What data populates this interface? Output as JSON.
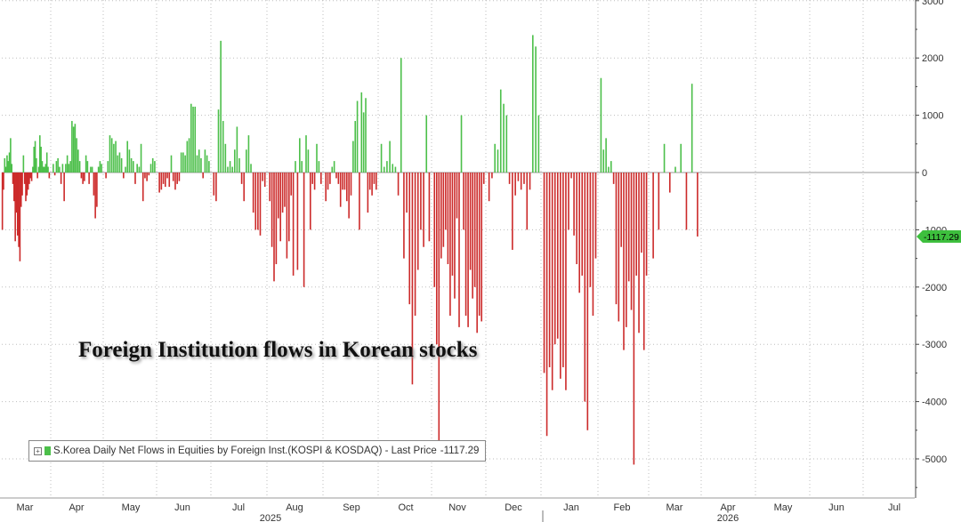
{
  "chart_data": {
    "type": "bar",
    "title": "Foreign Institution flows in Korean stocks",
    "legend": {
      "series_label": "S.Korea Daily Net Flows in Equities by Foreign Inst.(KOSPI & KOSDAQ) - Last Price",
      "last_price_text": "-1117.29",
      "position": "bottom-left"
    },
    "last_value_marker": "-1117.29",
    "ylim": [
      -5600,
      3000
    ],
    "y_ticks": [
      3000,
      2000,
      1000,
      0,
      -1000,
      -2000,
      -3000,
      -4000,
      -5000
    ],
    "y_axis_side": "right",
    "grid": "dotted",
    "colors": {
      "positive": "#4cbf4a",
      "negative": "#cc2a2a",
      "marker": "#3dbf3d",
      "axis": "#444444"
    },
    "month_labels": [
      "Mar",
      "Apr",
      "May",
      "Jun",
      "Jul",
      "Aug",
      "Sep",
      "Oct",
      "Nov",
      "Dec",
      "Jan",
      "Feb",
      "Mar",
      "Apr",
      "May",
      "Jun",
      "Jul"
    ],
    "year_labels": [
      "2025",
      "2026"
    ],
    "points": [
      [
        -1000,
        -300,
        250,
        100,
        300,
        200,
        350,
        600,
        150,
        -200,
        -500,
        -1200,
        -700,
        -1100,
        -1300,
        -1550,
        -600,
        -400,
        300,
        -200,
        -500,
        -400,
        -300,
        -200,
        -100,
        -150,
        100,
        450,
        550,
        250,
        -100,
        100,
        650,
        450,
        200,
        100,
        100,
        150,
        350,
        100,
        -100
      ],
      [
        150,
        -50,
        200,
        250,
        100,
        -200,
        150,
        -500,
        150,
        300,
        150,
        200,
        900,
        800,
        850,
        600,
        400,
        200,
        -100,
        -200,
        -150,
        300,
        200,
        -200,
        100,
        100,
        -400,
        -800,
        -600,
        100,
        200,
        150
      ],
      [
        -100,
        200,
        650,
        600,
        500,
        550,
        300,
        350,
        250,
        -100,
        100,
        550,
        400,
        250,
        200,
        -200,
        150,
        100,
        500,
        -500,
        -100,
        -150,
        -50,
        150,
        250,
        200
      ],
      [
        -350,
        -300,
        -200,
        -250,
        -100,
        -250,
        300,
        -150,
        -300,
        -200,
        -150,
        350,
        350,
        300,
        550,
        600,
        1200,
        1150,
        1150,
        300,
        400,
        250,
        -100,
        400,
        300,
        200
      ],
      [
        -400,
        -500,
        1100,
        2300,
        900,
        500,
        100,
        200,
        100,
        400,
        800,
        250,
        -200,
        -500,
        400,
        650,
        150,
        -700,
        -1000,
        -1000,
        -1100,
        -150,
        -250
      ],
      [
        -500,
        -1300,
        -1900,
        -1600,
        -800,
        -1200,
        -700,
        -600,
        -1500,
        -1200,
        -400,
        -1800,
        200,
        -1700,
        600,
        200,
        -2000,
        650,
        400,
        -1000,
        -200,
        -300,
        500,
        200,
        -200
      ],
      [
        -500,
        -300,
        -200,
        100,
        200,
        -100,
        -200,
        -600,
        -300,
        -300,
        -500,
        -800,
        -400,
        550,
        900,
        1250,
        -1000,
        1400,
        1050,
        1300,
        -700,
        -300,
        -400,
        -200,
        -300
      ],
      [
        500,
        100,
        200,
        550,
        150,
        100,
        -400,
        2000,
        -1500,
        -700,
        -2300,
        -3700,
        -2500,
        -1700,
        -1000,
        -1300,
        1000,
        -1200
      ],
      [
        -2000,
        -3000,
        -4900,
        -1500,
        -1300,
        -1000,
        -1600,
        -2500,
        -1800,
        -2200,
        -800,
        -2700,
        1000,
        -1000,
        -2500,
        -2700,
        -1700,
        -2200,
        -2000,
        -2800,
        -2500,
        -2600,
        -200
      ],
      [
        -500,
        -100,
        500,
        400,
        1450,
        1200,
        1000,
        -200,
        -1350,
        -400,
        -150,
        -300,
        -200,
        -1000,
        -300,
        2400,
        2200,
        1000
      ],
      [
        -3500,
        -4600,
        -3400,
        -3800,
        -3000,
        -2900,
        -3600,
        -3400,
        -3800,
        -1000,
        -100,
        -1100,
        -1600,
        -2100,
        -1800,
        -4000,
        -4500,
        -2000,
        -2500,
        -1500
      ],
      [
        1650,
        400,
        600,
        100,
        200,
        -200,
        -2300,
        -2600,
        -1300,
        -3100,
        -2700,
        -1900,
        -2400,
        -5100,
        -1800,
        -2800,
        -1400,
        -3100,
        -1800
      ],
      [
        -1500,
        -1000,
        500,
        -350,
        100,
        500,
        -1000,
        1550,
        -1117.29
      ]
    ]
  }
}
